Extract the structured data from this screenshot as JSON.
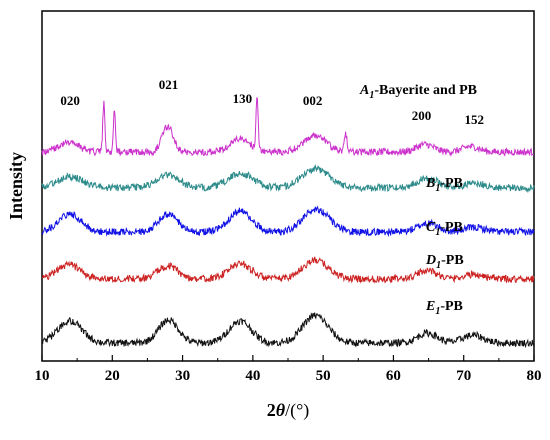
{
  "chart_data": {
    "type": "line",
    "xlabel_parts": {
      "value": "2",
      "symbol": "θ",
      "unit": "/(°)"
    },
    "ylabel": "Intensity",
    "xlim": [
      10,
      80
    ],
    "xticks": [
      "10",
      "20",
      "30",
      "40",
      "50",
      "60",
      "70",
      "80"
    ],
    "grid": false,
    "series": [
      {
        "letter": "A",
        "sub": "1",
        "suffix": "-Bayerite and PB",
        "color": "#cc33cc",
        "base": 0.0,
        "peaks": [
          {
            "x": 13.8,
            "h": 0.45,
            "w": 1.4
          },
          {
            "x": 18.8,
            "h": 2.3,
            "w": 0.15
          },
          {
            "x": 20.3,
            "h": 1.85,
            "w": 0.15
          },
          {
            "x": 27.9,
            "h": 1.15,
            "w": 0.8
          },
          {
            "x": 38.2,
            "h": 0.6,
            "w": 1.4
          },
          {
            "x": 40.6,
            "h": 2.4,
            "w": 0.15
          },
          {
            "x": 48.8,
            "h": 0.75,
            "w": 1.6
          },
          {
            "x": 53.2,
            "h": 0.85,
            "w": 0.18
          },
          {
            "x": 64.5,
            "h": 0.35,
            "w": 1.2
          },
          {
            "x": 71.0,
            "h": 0.25,
            "w": 1.2
          }
        ]
      },
      {
        "letter": "B",
        "sub": "1",
        "suffix": "-PB",
        "color": "#2e8b8b",
        "base": 0.1,
        "peaks": [
          {
            "x": 14.0,
            "h": 0.5,
            "w": 1.8
          },
          {
            "x": 27.9,
            "h": 0.6,
            "w": 1.6
          },
          {
            "x": 38.3,
            "h": 0.65,
            "w": 1.8
          },
          {
            "x": 49.0,
            "h": 0.85,
            "w": 2.0
          },
          {
            "x": 64.8,
            "h": 0.45,
            "w": 1.5
          },
          {
            "x": 71.5,
            "h": 0.2,
            "w": 1.5
          }
        ]
      },
      {
        "letter": "C",
        "sub": "1",
        "suffix": "-PB",
        "color": "#1010e6",
        "base": 0.05,
        "peaks": [
          {
            "x": 14.0,
            "h": 0.8,
            "w": 1.6
          },
          {
            "x": 27.9,
            "h": 0.8,
            "w": 1.4
          },
          {
            "x": 38.2,
            "h": 0.95,
            "w": 1.6
          },
          {
            "x": 49.0,
            "h": 1.05,
            "w": 1.8
          },
          {
            "x": 64.9,
            "h": 0.4,
            "w": 1.4
          },
          {
            "x": 71.5,
            "h": 0.2,
            "w": 1.5
          }
        ]
      },
      {
        "letter": "D",
        "sub": "1",
        "suffix": "-PB",
        "color": "#cc2222",
        "base": 0.05,
        "peaks": [
          {
            "x": 13.8,
            "h": 0.65,
            "w": 1.6
          },
          {
            "x": 27.9,
            "h": 0.6,
            "w": 1.4
          },
          {
            "x": 38.2,
            "h": 0.7,
            "w": 1.6
          },
          {
            "x": 48.9,
            "h": 0.85,
            "w": 1.8
          },
          {
            "x": 64.8,
            "h": 0.4,
            "w": 1.3
          },
          {
            "x": 71.5,
            "h": 0.2,
            "w": 1.5
          }
        ]
      },
      {
        "letter": "E",
        "sub": "1",
        "suffix": "-PB",
        "color": "#111111",
        "base": 0.0,
        "peaks": [
          {
            "x": 14.0,
            "h": 1.0,
            "w": 1.7
          },
          {
            "x": 28.0,
            "h": 1.05,
            "w": 1.4
          },
          {
            "x": 38.2,
            "h": 1.0,
            "w": 1.6
          },
          {
            "x": 48.9,
            "h": 1.25,
            "w": 1.8
          },
          {
            "x": 64.8,
            "h": 0.45,
            "w": 1.4
          },
          {
            "x": 71.3,
            "h": 0.35,
            "w": 1.5
          }
        ]
      }
    ],
    "peak_labels": [
      {
        "text": "020",
        "x": 14.0
      },
      {
        "text": "021",
        "x": 28.0
      },
      {
        "text": "130",
        "x": 38.5
      },
      {
        "text": "002",
        "x": 48.5
      },
      {
        "text": "200",
        "x": 64.0
      },
      {
        "text": "152",
        "x": 71.5
      }
    ]
  }
}
